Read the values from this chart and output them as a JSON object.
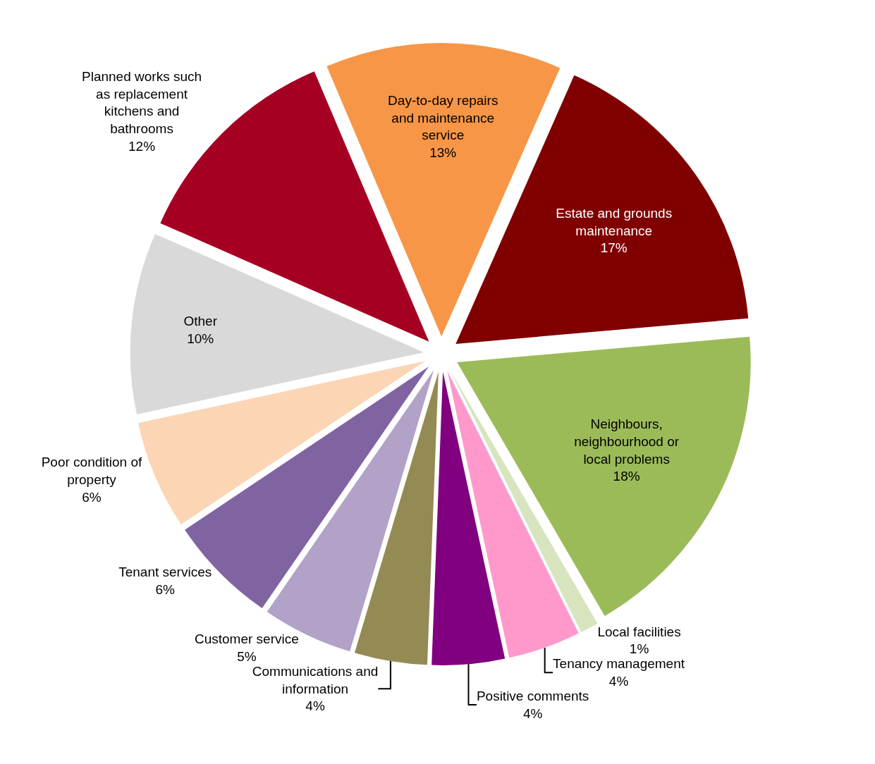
{
  "chart_data": {
    "type": "pie",
    "categories": [
      "Day-to-day repairs and maintenance service",
      "Estate and grounds maintenance",
      "Neighbours, neighbourhood or local problems",
      "Local facilities",
      "Tenancy management",
      "Positive comments",
      "Communications and information",
      "Customer service",
      "Tenant services",
      "Poor condition of property",
      "Other",
      "Planned works such as replacement kitchens and bathrooms"
    ],
    "values": [
      13,
      17,
      18,
      1,
      4,
      4,
      4,
      5,
      6,
      6,
      10,
      12
    ],
    "value_labels": [
      "13%",
      "17%",
      "18%",
      "1%",
      "4%",
      "4%",
      "4%",
      "5%",
      "6%",
      "6%",
      "10%",
      "12%"
    ],
    "colors": [
      "#f79646",
      "#800000",
      "#9bbb59",
      "#d7e4bd",
      "#ff99cc",
      "#800080",
      "#948a54",
      "#b2a2c7",
      "#8064a2",
      "#fcd5b5",
      "#d9d9d9",
      "#a50021"
    ]
  }
}
